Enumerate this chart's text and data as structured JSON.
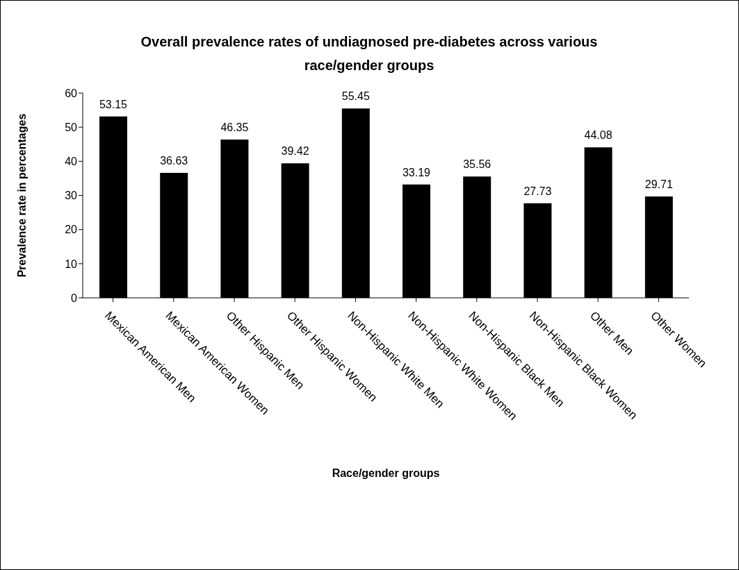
{
  "chart_data": {
    "type": "bar",
    "title": "Overall prevalence rates of undiagnosed pre-diabetes across various race/gender groups",
    "xlabel": "Race/gender groups",
    "ylabel": "Prevalence rate in percentages",
    "categories": [
      "Mexican American Men",
      "Mexican American Women",
      "Other Hispanic Men",
      "Other Hispanic Women",
      "Non-Hispanic White Men",
      "Non-Hispanic White Women",
      "Non-Hispanic Black Men",
      "Non-Hispanic Black Women",
      "Other Men",
      "Other Women"
    ],
    "values": [
      53.15,
      36.63,
      46.35,
      39.42,
      55.45,
      33.19,
      35.56,
      27.73,
      44.08,
      29.71
    ],
    "color": "#000000",
    "ylim": [
      0,
      60
    ],
    "yticks": [
      0,
      10,
      20,
      30,
      40,
      50,
      60
    ],
    "data_labels": true
  }
}
